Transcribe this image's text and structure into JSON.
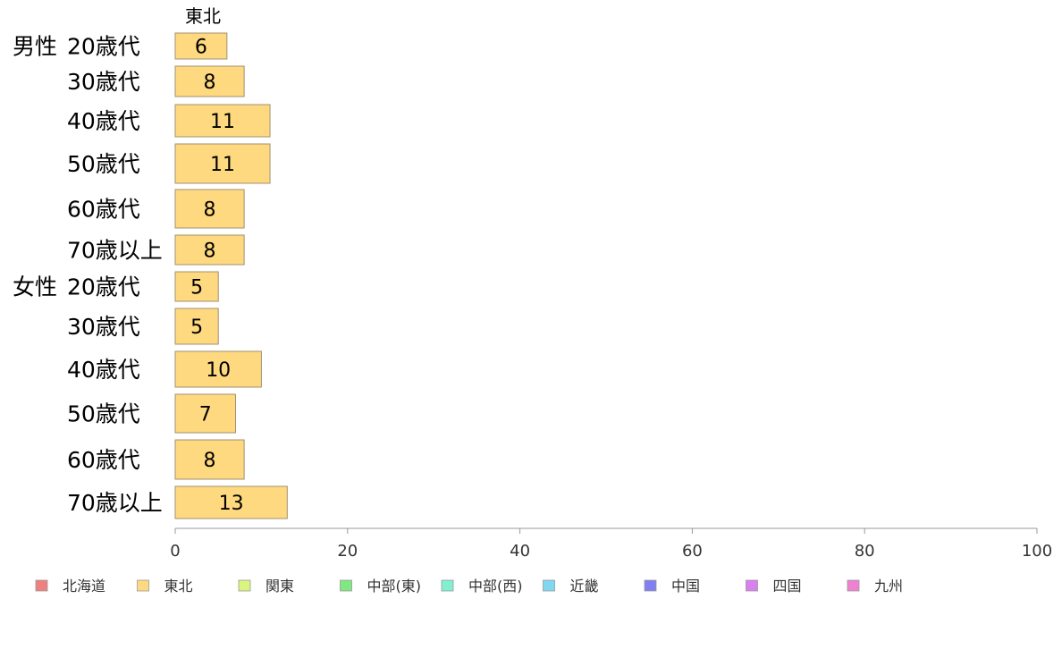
{
  "chart_data": {
    "type": "bar",
    "orientation": "horizontal",
    "stacked": true,
    "groups": [
      {
        "name": "男性",
        "categories": [
          "20歳代",
          "30歳代",
          "40歳代",
          "50歳代",
          "60歳代",
          "70歳以上"
        ]
      },
      {
        "name": "女性",
        "categories": [
          "20歳代",
          "30歳代",
          "40歳代",
          "50歳代",
          "60歳代",
          "70歳以上"
        ]
      }
    ],
    "series": [
      {
        "name": "北海道",
        "color": "#f08080",
        "values": [
          0,
          0,
          0,
          0,
          0,
          0,
          0,
          0,
          0,
          0,
          0,
          0
        ]
      },
      {
        "name": "東北",
        "color": "#ffd980",
        "values": [
          6,
          8,
          11,
          11,
          8,
          8,
          5,
          5,
          10,
          7,
          8,
          13
        ]
      },
      {
        "name": "関東",
        "color": "#d9f580",
        "values": [
          0,
          0,
          0,
          0,
          0,
          0,
          0,
          0,
          0,
          0,
          0,
          0
        ]
      },
      {
        "name": "中部(東)",
        "color": "#80e880",
        "values": [
          0,
          0,
          0,
          0,
          0,
          0,
          0,
          0,
          0,
          0,
          0,
          0
        ]
      },
      {
        "name": "中部(西)",
        "color": "#80f0d0",
        "values": [
          0,
          0,
          0,
          0,
          0,
          0,
          0,
          0,
          0,
          0,
          0,
          0
        ]
      },
      {
        "name": "近畿",
        "color": "#80d8f0",
        "values": [
          0,
          0,
          0,
          0,
          0,
          0,
          0,
          0,
          0,
          0,
          0,
          0
        ]
      },
      {
        "name": "中国",
        "color": "#8080f0",
        "values": [
          0,
          0,
          0,
          0,
          0,
          0,
          0,
          0,
          0,
          0,
          0,
          0
        ]
      },
      {
        "name": "四国",
        "color": "#d980f0",
        "values": [
          0,
          0,
          0,
          0,
          0,
          0,
          0,
          0,
          0,
          0,
          0,
          0
        ]
      },
      {
        "name": "九州",
        "color": "#f080d0",
        "values": [
          0,
          0,
          0,
          0,
          0,
          0,
          0,
          0,
          0,
          0,
          0,
          0
        ]
      }
    ],
    "shown_series_heading": "東北",
    "xlim": [
      0,
      100
    ],
    "xticks": [
      0,
      20,
      40,
      60,
      80,
      100
    ],
    "legend_position": "bottom",
    "grid": false
  }
}
